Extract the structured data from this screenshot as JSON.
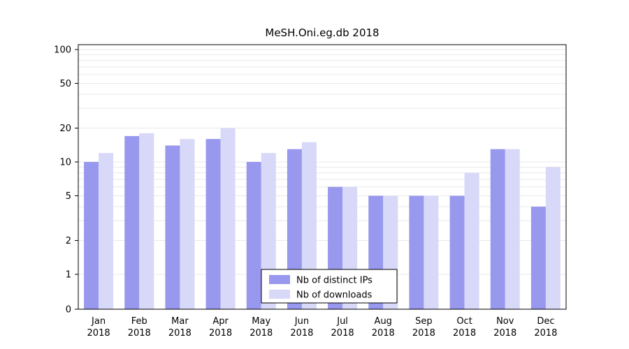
{
  "chart_data": {
    "type": "bar",
    "title": "MeSH.Oni.eg.db 2018",
    "year": "2018",
    "categories": [
      "Jan",
      "Feb",
      "Mar",
      "Apr",
      "May",
      "Jun",
      "Jul",
      "Aug",
      "Sep",
      "Oct",
      "Nov",
      "Dec"
    ],
    "series": [
      {
        "name": "Nb of distinct IPs",
        "color": "#9898ee",
        "values": [
          10,
          17,
          14,
          16,
          10,
          13,
          6,
          5,
          5,
          5,
          13,
          4
        ]
      },
      {
        "name": "Nb of downloads",
        "color": "#d8d8f8",
        "values": [
          12,
          18,
          16,
          20,
          12,
          15,
          6,
          5,
          5,
          8,
          13,
          9
        ]
      }
    ],
    "yticks": [
      0,
      1,
      2,
      5,
      10,
      20,
      50,
      100
    ],
    "ylim": [
      0,
      100
    ],
    "scale": "log",
    "xlabel": "",
    "ylabel": "",
    "grid": true,
    "grid_color": "#e9e9e9",
    "legend_position": "bottom-center",
    "colors": {
      "background": "#ffffff",
      "axis": "#000000",
      "text": "#000000"
    }
  }
}
